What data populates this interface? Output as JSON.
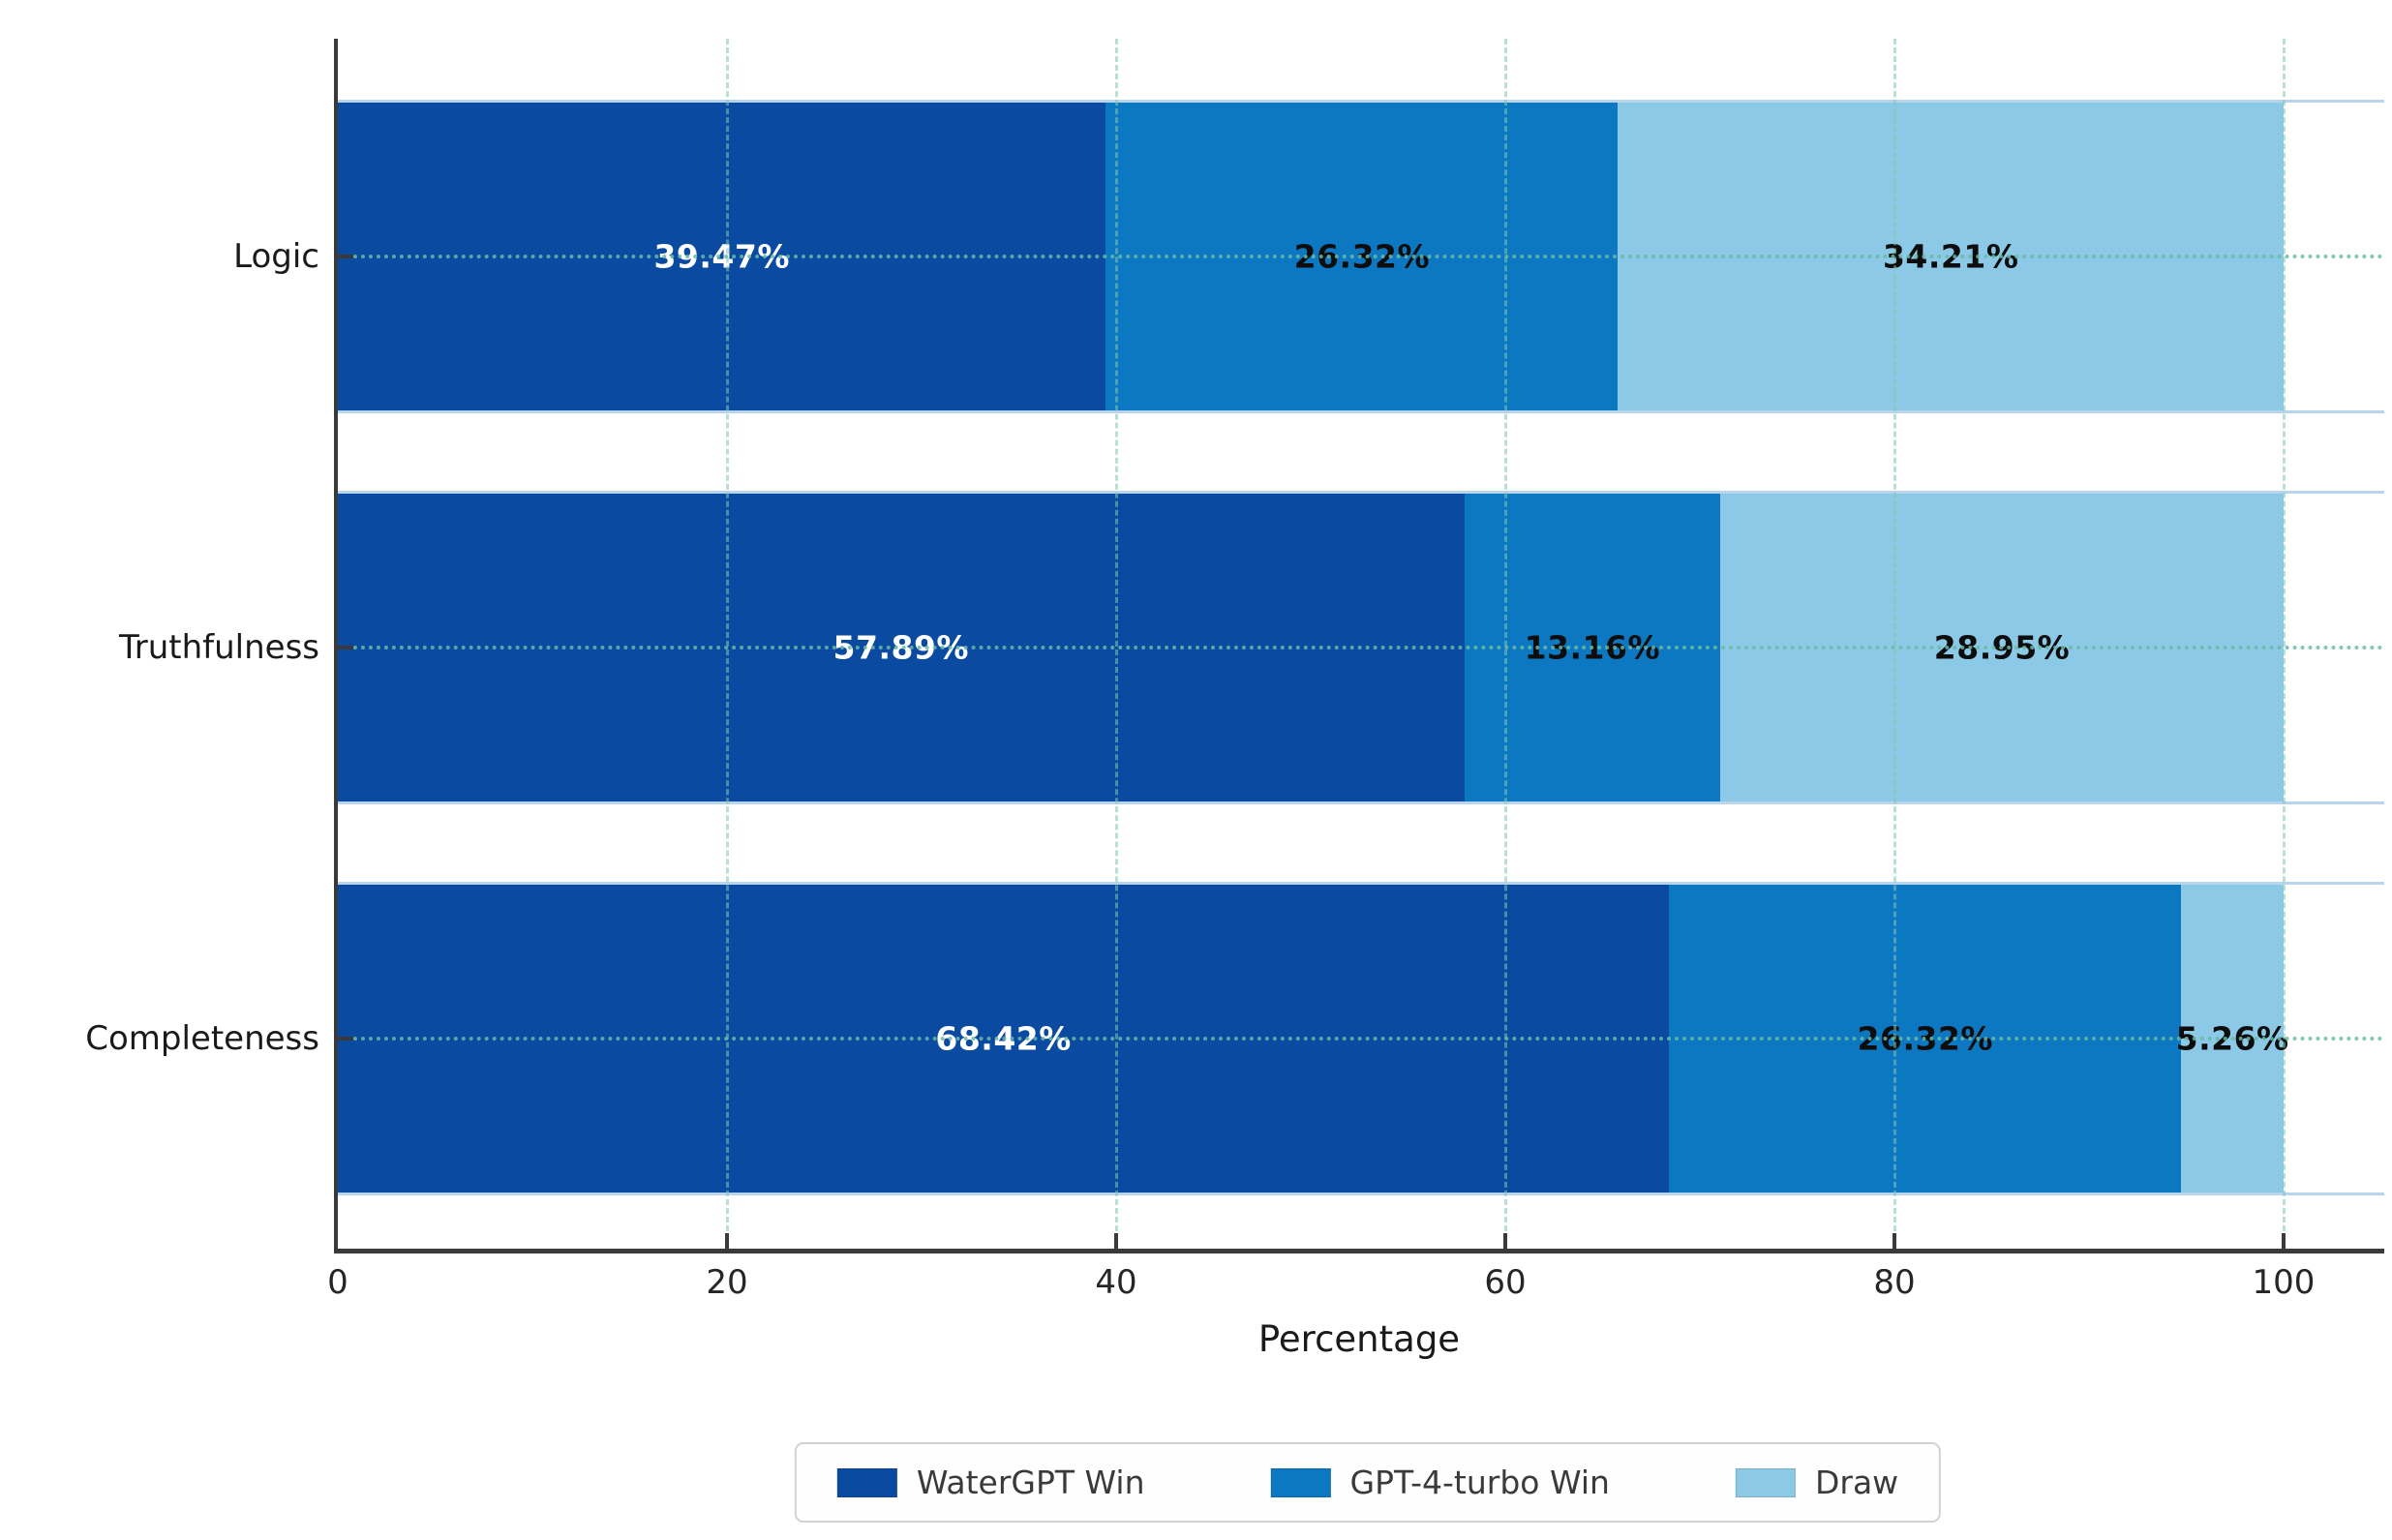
{
  "chart_data": {
    "type": "bar",
    "orientation": "horizontal",
    "stacked": true,
    "title": "",
    "xlabel": "Percentage",
    "ylabel": "",
    "xlim": [
      0,
      105
    ],
    "x_ticks": [
      0,
      20,
      40,
      60,
      80,
      100
    ],
    "x_tick_labels": [
      "0",
      "20",
      "40",
      "60",
      "80",
      "100"
    ],
    "grid": "dashed vertical gridlines at ticks; dotted horizontal line at each category center",
    "legend_position": "bottom center",
    "categories": [
      "Logic",
      "Truthfulness",
      "Completeness"
    ],
    "series": [
      {
        "name": "WaterGPT Win",
        "color": "#0a4aa1",
        "label_color": "#ffffff",
        "values": [
          39.47,
          57.89,
          68.42
        ],
        "value_labels": [
          "39.47%",
          "57.89%",
          "68.42%"
        ]
      },
      {
        "name": "GPT-4-turbo Win",
        "color": "#0d78c2",
        "label_color": "#0d0d0d",
        "values": [
          26.32,
          13.16,
          26.32
        ],
        "value_labels": [
          "26.32%",
          "13.16%",
          "26.32%"
        ]
      },
      {
        "name": "Draw",
        "color": "#8bc9e6",
        "label_color": "#0d0d0d",
        "values": [
          34.21,
          28.95,
          5.26
        ],
        "value_labels": [
          "34.21%",
          "28.95%",
          "5.26%"
        ]
      }
    ]
  },
  "colors": {
    "axis_spine": "#3a3a3a",
    "grid_teal": "#6abaa6",
    "bar_edge": "#b9d5ee",
    "legend_border": "#d2d2d2",
    "tick_label": "#262626"
  }
}
